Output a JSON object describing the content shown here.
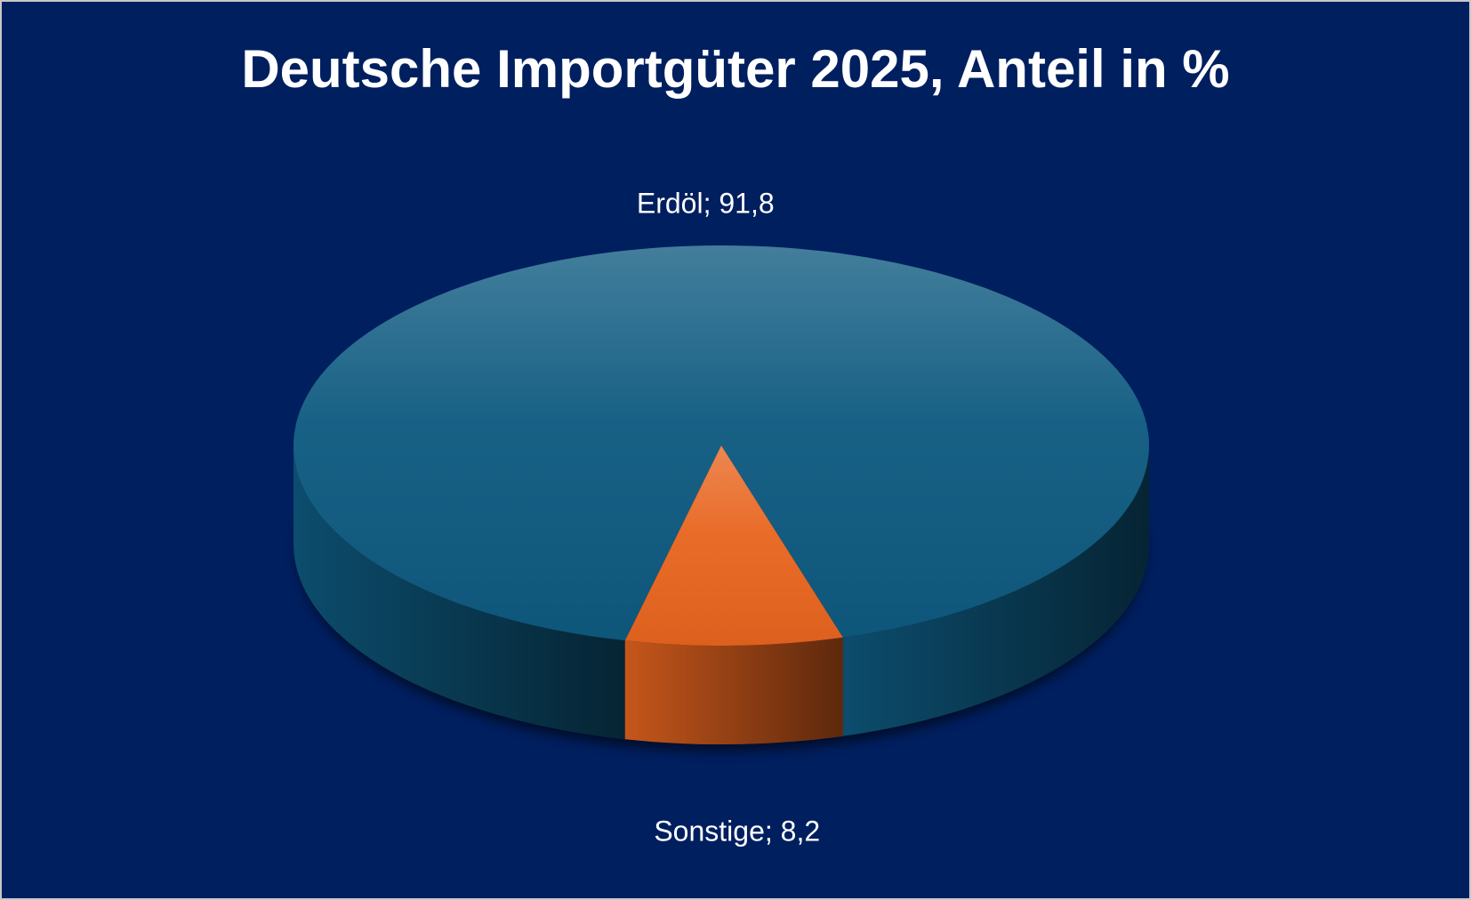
{
  "chart_data": {
    "type": "pie",
    "title": "Deutsche Importgüter 2025, Anteil in %",
    "values": [
      91.8,
      8.2
    ],
    "value_labels": [
      "Erdöl; 91,8",
      "Sonstige; 8,2"
    ],
    "colors": [
      "#0e5a80",
      "#e8651f"
    ]
  }
}
